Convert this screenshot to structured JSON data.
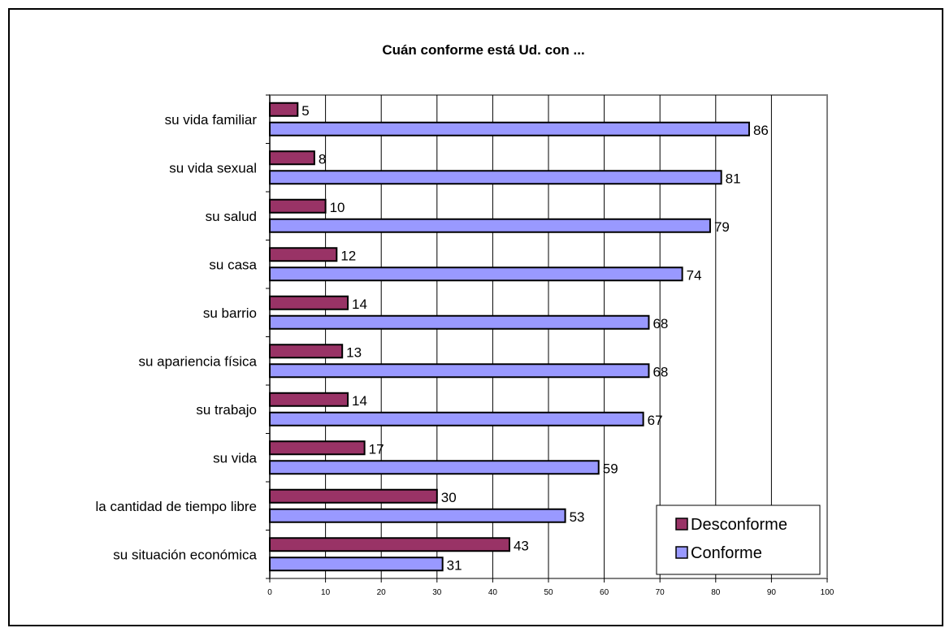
{
  "chart_data": {
    "type": "bar",
    "orientation": "horizontal",
    "title": "Cuán conforme está Ud. con ...",
    "categories": [
      "su vida familiar",
      "su vida sexual",
      "su salud",
      "su casa",
      "su barrio",
      "su apariencia física",
      "su trabajo",
      "su vida",
      "la cantidad de tiempo libre",
      "su situación económica"
    ],
    "series": [
      {
        "name": "Desconforme",
        "color": "#993366",
        "values": [
          5,
          8,
          10,
          12,
          14,
          13,
          14,
          17,
          30,
          43
        ]
      },
      {
        "name": "Conforme",
        "color": "#9999ff",
        "values": [
          86,
          81,
          79,
          74,
          68,
          68,
          67,
          59,
          53,
          31
        ]
      }
    ],
    "xlim": [
      0,
      100
    ],
    "x_ticks": [
      0,
      10,
      20,
      30,
      40,
      50,
      60,
      70,
      80,
      90,
      100
    ],
    "grid": true,
    "legend_position": "bottom-right"
  }
}
